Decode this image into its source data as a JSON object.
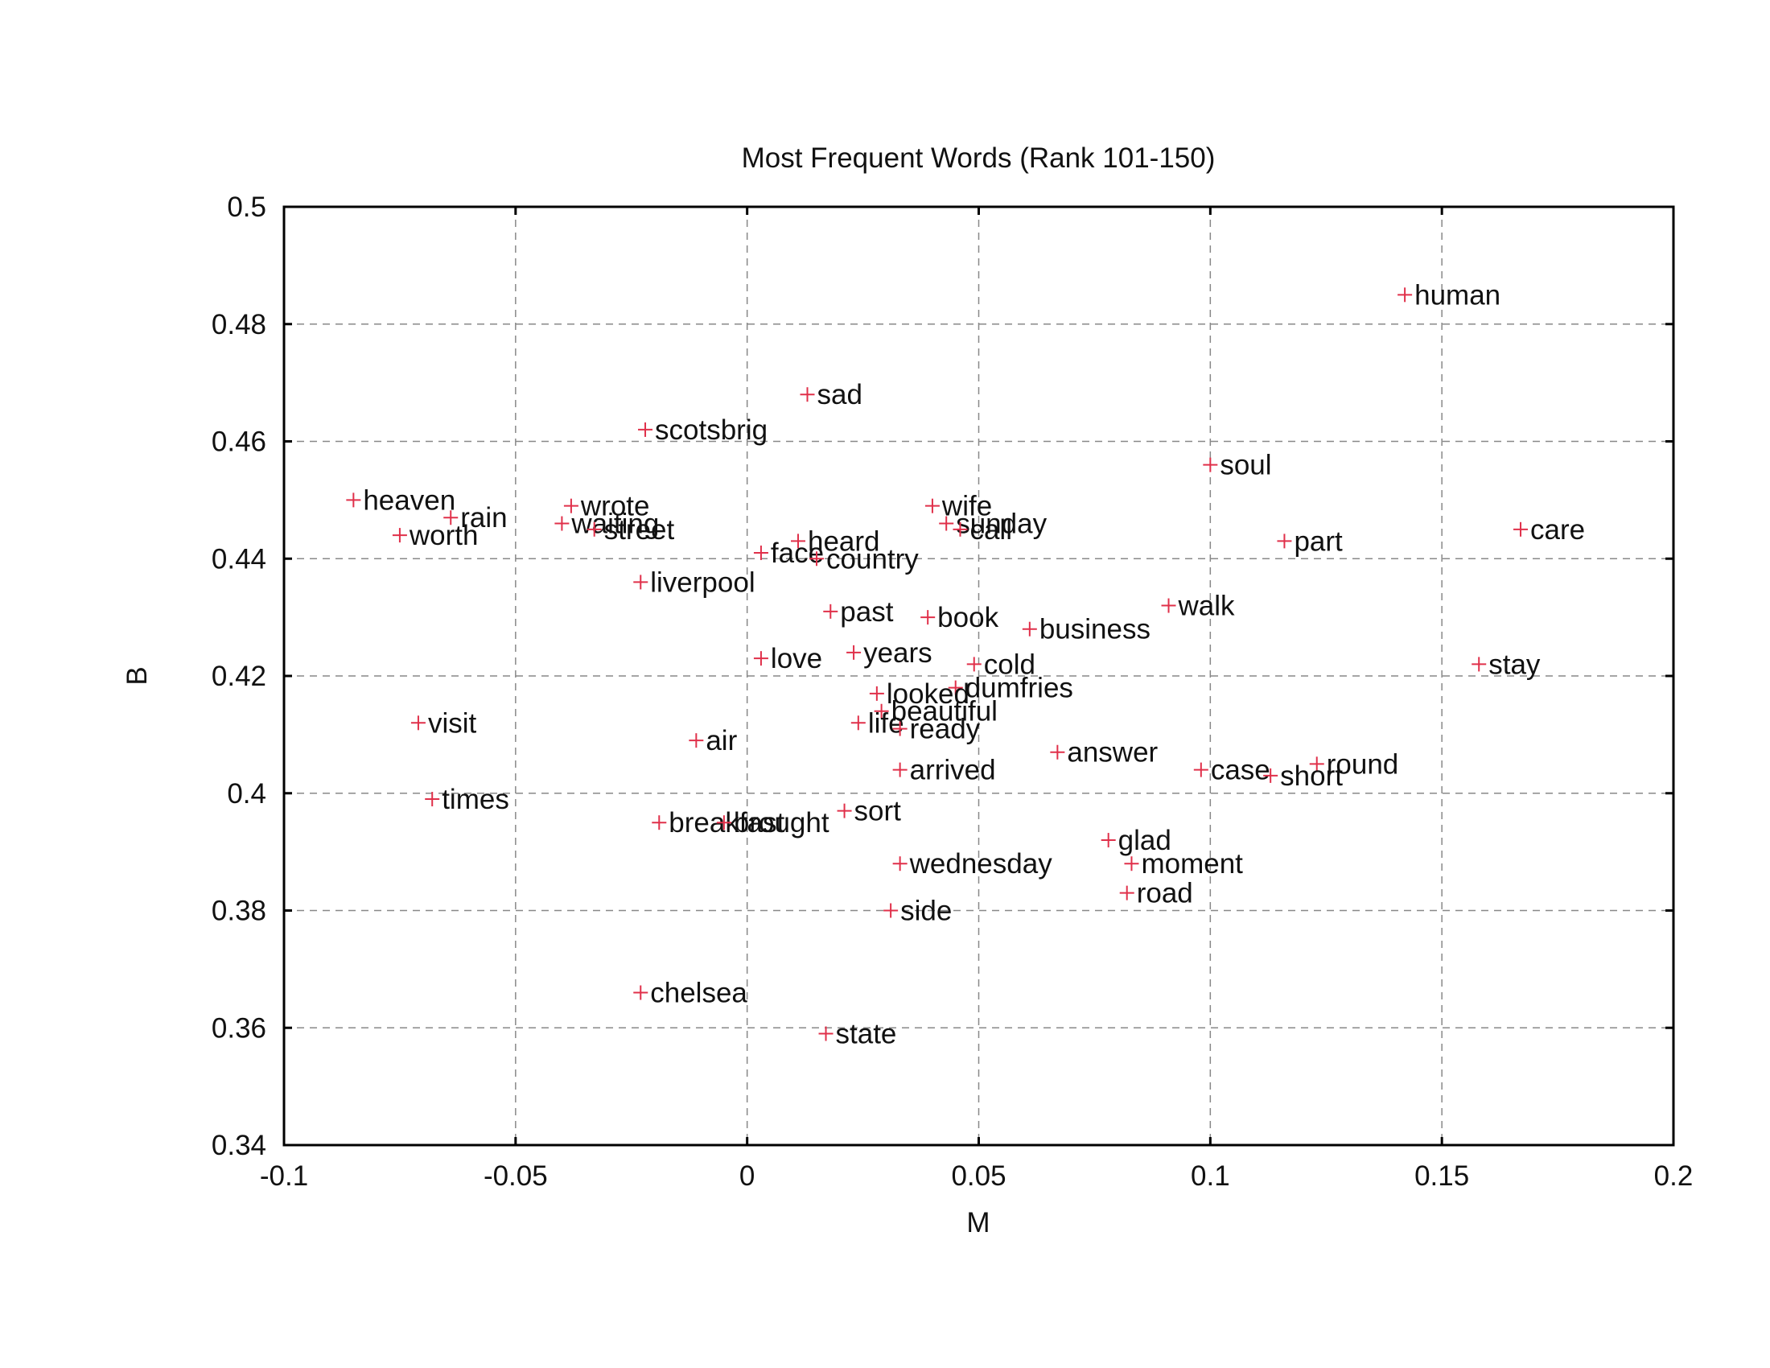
{
  "chart_data": {
    "type": "scatter",
    "title": "Most Frequent Words (Rank 101-150)",
    "xlabel": "M",
    "ylabel": "B",
    "xlim": [
      -0.1,
      0.2
    ],
    "ylim": [
      0.34,
      0.5
    ],
    "xticks": [
      -0.1,
      -0.05,
      0,
      0.05,
      0.1,
      0.15,
      0.2
    ],
    "xtick_labels": [
      "-0.1",
      "-0.05",
      "0",
      "0.05",
      "0.1",
      "0.15",
      "0.2"
    ],
    "yticks": [
      0.34,
      0.36,
      0.38,
      0.4,
      0.42,
      0.44,
      0.46,
      0.48,
      0.5
    ],
    "ytick_labels": [
      "0.34",
      "0.36",
      "0.38",
      "0.4",
      "0.42",
      "0.44",
      "0.46",
      "0.48",
      "0.5"
    ],
    "grid": true,
    "marker_color": "#e0304a",
    "points": [
      {
        "label": "human",
        "x": 0.142,
        "y": 0.485
      },
      {
        "label": "sad",
        "x": 0.013,
        "y": 0.468
      },
      {
        "label": "scotsbrig",
        "x": -0.022,
        "y": 0.462
      },
      {
        "label": "soul",
        "x": 0.1,
        "y": 0.456
      },
      {
        "label": "heaven",
        "x": -0.085,
        "y": 0.45
      },
      {
        "label": "wrote",
        "x": -0.038,
        "y": 0.449
      },
      {
        "label": "wife",
        "x": 0.04,
        "y": 0.449
      },
      {
        "label": "rain",
        "x": -0.064,
        "y": 0.447
      },
      {
        "label": "waiting",
        "x": -0.04,
        "y": 0.446
      },
      {
        "label": "sunday",
        "x": 0.043,
        "y": 0.446
      },
      {
        "label": "call",
        "x": 0.046,
        "y": 0.445
      },
      {
        "label": "care",
        "x": 0.167,
        "y": 0.445
      },
      {
        "label": "street",
        "x": -0.033,
        "y": 0.445
      },
      {
        "label": "worth",
        "x": -0.075,
        "y": 0.444
      },
      {
        "label": "heard",
        "x": 0.011,
        "y": 0.443
      },
      {
        "label": "part",
        "x": 0.116,
        "y": 0.443
      },
      {
        "label": "face",
        "x": 0.003,
        "y": 0.441
      },
      {
        "label": "country",
        "x": 0.015,
        "y": 0.44
      },
      {
        "label": "liverpool",
        "x": -0.023,
        "y": 0.436
      },
      {
        "label": "walk",
        "x": 0.091,
        "y": 0.432
      },
      {
        "label": "past",
        "x": 0.018,
        "y": 0.431
      },
      {
        "label": "book",
        "x": 0.039,
        "y": 0.43
      },
      {
        "label": "business",
        "x": 0.061,
        "y": 0.428
      },
      {
        "label": "years",
        "x": 0.023,
        "y": 0.424
      },
      {
        "label": "love",
        "x": 0.003,
        "y": 0.423
      },
      {
        "label": "cold",
        "x": 0.049,
        "y": 0.422
      },
      {
        "label": "stay",
        "x": 0.158,
        "y": 0.422
      },
      {
        "label": "dumfries",
        "x": 0.045,
        "y": 0.418
      },
      {
        "label": "looked",
        "x": 0.028,
        "y": 0.417
      },
      {
        "label": "beautiful",
        "x": 0.029,
        "y": 0.414
      },
      {
        "label": "visit",
        "x": -0.071,
        "y": 0.412
      },
      {
        "label": "life",
        "x": 0.024,
        "y": 0.412
      },
      {
        "label": "ready",
        "x": 0.033,
        "y": 0.411
      },
      {
        "label": "air",
        "x": -0.011,
        "y": 0.409
      },
      {
        "label": "answer",
        "x": 0.067,
        "y": 0.407
      },
      {
        "label": "round",
        "x": 0.123,
        "y": 0.405
      },
      {
        "label": "case",
        "x": 0.098,
        "y": 0.404
      },
      {
        "label": "arrived",
        "x": 0.033,
        "y": 0.404
      },
      {
        "label": "short",
        "x": 0.113,
        "y": 0.403
      },
      {
        "label": "times",
        "x": -0.068,
        "y": 0.399
      },
      {
        "label": "sort",
        "x": 0.021,
        "y": 0.397
      },
      {
        "label": "breakfast",
        "x": -0.019,
        "y": 0.395
      },
      {
        "label": "brought",
        "x": -0.005,
        "y": 0.395
      },
      {
        "label": "glad",
        "x": 0.078,
        "y": 0.392
      },
      {
        "label": "wednesday",
        "x": 0.033,
        "y": 0.388
      },
      {
        "label": "moment",
        "x": 0.083,
        "y": 0.388
      },
      {
        "label": "road",
        "x": 0.082,
        "y": 0.383
      },
      {
        "label": "side",
        "x": 0.031,
        "y": 0.38
      },
      {
        "label": "chelsea",
        "x": -0.023,
        "y": 0.366
      },
      {
        "label": "state",
        "x": 0.017,
        "y": 0.359
      }
    ]
  }
}
